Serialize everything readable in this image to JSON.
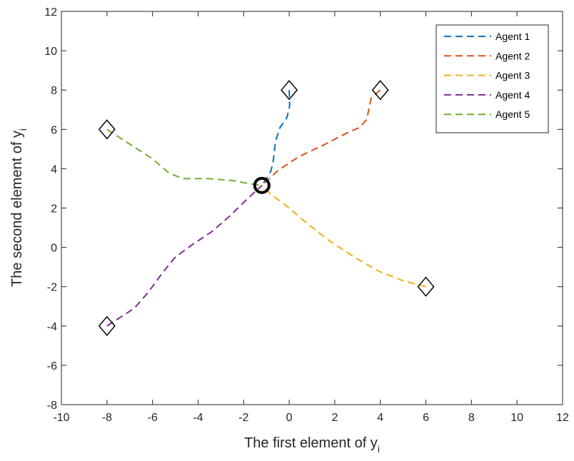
{
  "chart_data": {
    "type": "line",
    "title": "",
    "xlabel": "The first element of y",
    "xlabel_sub": "i",
    "ylabel": "The second element of y",
    "ylabel_sub": "i",
    "xlim": [
      -10,
      12
    ],
    "ylim": [
      -8,
      12
    ],
    "xticks": [
      -10,
      -8,
      -6,
      -4,
      -2,
      0,
      2,
      4,
      6,
      8,
      10,
      12
    ],
    "yticks": [
      -8,
      -6,
      -4,
      -2,
      0,
      2,
      4,
      6,
      8,
      10,
      12
    ],
    "grid": false,
    "legend": "top-right",
    "consensus_point": {
      "x": -1.2,
      "y": 3.15
    },
    "series": [
      {
        "name": "Agent 1",
        "color": "#0072BD",
        "start": {
          "x": 0,
          "y": 8
        },
        "x": [
          0,
          0.02,
          -0.1,
          -0.4,
          -0.6,
          -0.7,
          -0.8,
          -1.0,
          -1.2
        ],
        "y": [
          8,
          7.2,
          6.6,
          6.1,
          5.4,
          4.4,
          3.9,
          3.5,
          3.15
        ]
      },
      {
        "name": "Agent 2",
        "color": "#D95319",
        "start": {
          "x": 4,
          "y": 8
        },
        "x": [
          4,
          3.6,
          3.4,
          3.1,
          2.5,
          1.5,
          0.4,
          -0.5,
          -1.2
        ],
        "y": [
          8,
          7.6,
          6.5,
          6.1,
          5.8,
          5.2,
          4.6,
          3.9,
          3.15
        ]
      },
      {
        "name": "Agent 3",
        "color": "#EDB120",
        "start": {
          "x": 6,
          "y": -2
        },
        "x": [
          6,
          5.0,
          4.0,
          3.0,
          1.8,
          0.8,
          0,
          -0.8,
          -1.2
        ],
        "y": [
          -2,
          -1.7,
          -1.25,
          -0.6,
          0.3,
          1.2,
          2.0,
          2.7,
          3.15
        ]
      },
      {
        "name": "Agent 4",
        "color": "#7E2F8E",
        "start": {
          "x": -8,
          "y": -4
        },
        "x": [
          -8,
          -6.8,
          -6.2,
          -5.5,
          -5.0,
          -4.3,
          -3.4,
          -2.6,
          -1.9,
          -1.2
        ],
        "y": [
          -4,
          -3.1,
          -2.3,
          -1.2,
          -0.5,
          0.1,
          0.8,
          1.6,
          2.4,
          3.15
        ]
      },
      {
        "name": "Agent 5",
        "color": "#77AC30",
        "start": {
          "x": -8,
          "y": 6
        },
        "x": [
          -8,
          -6.8,
          -6.0,
          -5.3,
          -4.7,
          -3.6,
          -2.5,
          -1.8,
          -1.2
        ],
        "y": [
          6,
          5.1,
          4.5,
          3.8,
          3.5,
          3.5,
          3.4,
          3.25,
          3.15
        ]
      }
    ]
  }
}
